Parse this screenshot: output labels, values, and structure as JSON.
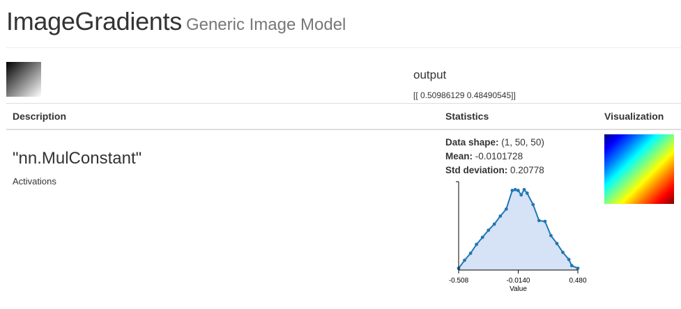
{
  "header": {
    "title": "ImageGradients",
    "subtitle": "Generic Image Model"
  },
  "input": {
    "thumbnail_icon": "gradient-image-thumbnail"
  },
  "output": {
    "label": "output",
    "values": "[[ 0.50986129 0.48490545]]"
  },
  "table": {
    "headers": {
      "description": "Description",
      "statistics": "Statistics",
      "visualization": "Visualization"
    },
    "row": {
      "layer_name": "\"nn.MulConstant\"",
      "layer_kind": "Activations",
      "stats": {
        "data_shape_label": "Data shape:",
        "data_shape_value": " (1, 50, 50)",
        "mean_label": "Mean:",
        "mean_value": " -0.0101728",
        "std_label": "Std deviation:",
        "std_value": " 0.20778"
      },
      "visualization_icon": "jet-colormap-activation-image"
    }
  },
  "chart_data": {
    "type": "area",
    "x": [
      -0.508,
      -0.4587,
      -0.4093,
      -0.36,
      -0.3106,
      -0.2612,
      -0.2119,
      -0.1625,
      -0.1131,
      -0.0638,
      -0.0391,
      -0.0144,
      0.0103,
      0.035,
      0.0597,
      0.109,
      0.1584,
      0.2078,
      0.2571,
      0.3065,
      0.3559,
      0.4052,
      0.4299,
      0.48
    ],
    "values": [
      0.02,
      0.11,
      0.19,
      0.29,
      0.37,
      0.45,
      0.52,
      0.61,
      0.69,
      0.9,
      0.91,
      0.9,
      0.85,
      0.91,
      0.87,
      0.74,
      0.56,
      0.55,
      0.39,
      0.3,
      0.2,
      0.12,
      0.05,
      0.02
    ],
    "xticks": [
      "-0.508",
      "-0.0140",
      "0.480"
    ],
    "xlabel": "Value",
    "ylabel": "",
    "xlim": [
      -0.508,
      0.48
    ],
    "ylim": [
      0,
      1
    ],
    "grid": false,
    "colors": {
      "line": "#1f77b4",
      "fill": "#d6e2f5"
    }
  }
}
